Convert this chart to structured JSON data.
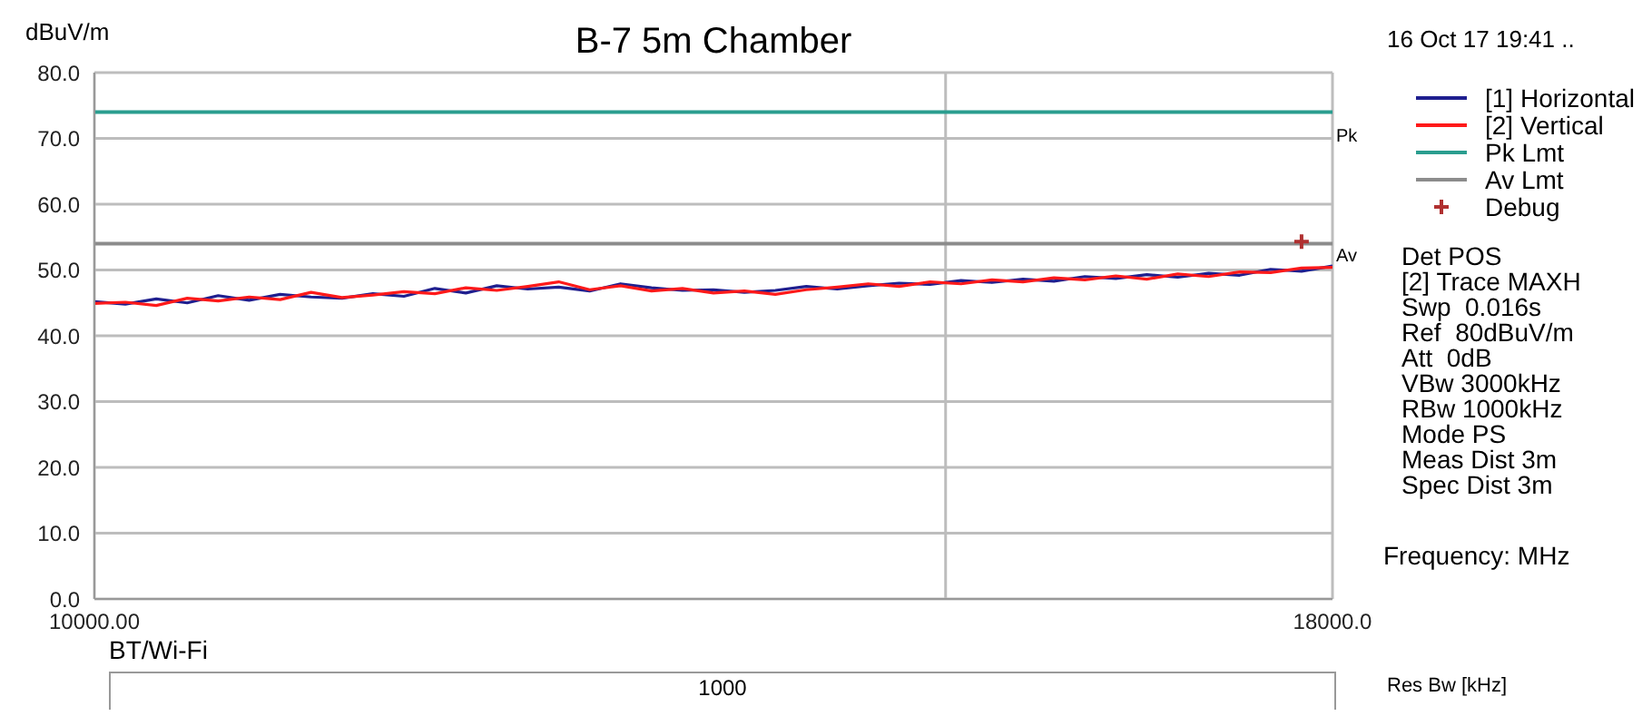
{
  "chart_data": {
    "type": "line",
    "title": "B-7 5m Chamber",
    "ylabel": "dBuV/m",
    "xlim": [
      10000,
      18000
    ],
    "xticks": [
      {
        "value": 10000,
        "label": "10000.00"
      },
      {
        "value": 15500,
        "label": null
      },
      {
        "value": 18000,
        "label": "18000.0"
      }
    ],
    "ylim": [
      0,
      80
    ],
    "yticks": [
      {
        "value": 0,
        "label": "0.0"
      },
      {
        "value": 10,
        "label": "10.0"
      },
      {
        "value": 20,
        "label": "20.0"
      },
      {
        "value": 30,
        "label": "30.0"
      },
      {
        "value": 40,
        "label": "40.0"
      },
      {
        "value": 50,
        "label": "50.0"
      },
      {
        "value": 60,
        "label": "60.0"
      },
      {
        "value": 70,
        "label": "70.0"
      },
      {
        "value": 80,
        "label": "80.0"
      }
    ],
    "grid": true,
    "legend": "right",
    "line_style": "solid",
    "marker": "none",
    "x": [
      10000,
      10200,
      10400,
      10600,
      10800,
      11000,
      11200,
      11400,
      11600,
      11800,
      12000,
      12200,
      12400,
      12600,
      12800,
      13000,
      13200,
      13400,
      13600,
      13800,
      14000,
      14200,
      14400,
      14600,
      14800,
      15000,
      15200,
      15400,
      15600,
      15800,
      16000,
      16200,
      16400,
      16600,
      16800,
      17000,
      17200,
      17400,
      17600,
      17800,
      18000
    ],
    "series": [
      {
        "name": "[1] Horizontal",
        "color": "#1f1f8f",
        "values": [
          45.2,
          44.8,
          45.6,
          45.0,
          46.1,
          45.4,
          46.3,
          45.9,
          45.7,
          46.4,
          46.0,
          47.2,
          46.5,
          47.6,
          47.1,
          47.4,
          46.8,
          47.9,
          47.3,
          46.9,
          47.0,
          46.6,
          46.9,
          47.5,
          47.1,
          47.6,
          48.0,
          47.8,
          48.4,
          48.1,
          48.6,
          48.3,
          49.0,
          48.7,
          49.3,
          48.9,
          49.5,
          49.2,
          50.1,
          49.8,
          50.6
        ]
      },
      {
        "name": "[2] Vertical",
        "color": "#ff1a1a",
        "values": [
          44.9,
          45.1,
          44.6,
          45.7,
          45.3,
          45.9,
          45.5,
          46.6,
          45.8,
          46.2,
          46.7,
          46.4,
          47.3,
          46.9,
          47.5,
          48.2,
          47.0,
          47.6,
          46.8,
          47.2,
          46.5,
          46.8,
          46.3,
          47.0,
          47.4,
          47.9,
          47.5,
          48.2,
          47.9,
          48.5,
          48.2,
          48.8,
          48.5,
          49.1,
          48.6,
          49.4,
          49.0,
          49.7,
          49.6,
          50.3,
          50.4
        ]
      },
      {
        "name": "Pk Lmt",
        "color": "#2a9d8f",
        "x": [
          10000,
          18000
        ],
        "values": [
          74,
          74
        ]
      },
      {
        "name": "Av Lmt",
        "color": "#8c8c8c",
        "x": [
          10000,
          18000
        ],
        "values": [
          54,
          54
        ]
      },
      {
        "name": "Debug",
        "type": "scatter",
        "marker": "cross",
        "color": "#b03030",
        "x": [
          17800
        ],
        "values": [
          54.3
        ]
      }
    ],
    "annotations": [
      "Pk",
      "Av",
      "Frequency: MHz",
      "16 Oct 17 19:41 ..",
      "Det POS",
      "[2] Trace MAXH",
      "Swp  0.016s",
      "Ref  80dBuV/m",
      "Att  0dB",
      "VBw 3000kHz",
      "RBw 1000kHz",
      "Mode PS",
      "Meas Dist 3m",
      "Spec Dist 3m",
      "BT/Wi-Fi",
      "1000",
      "Res Bw [kHz]"
    ]
  }
}
